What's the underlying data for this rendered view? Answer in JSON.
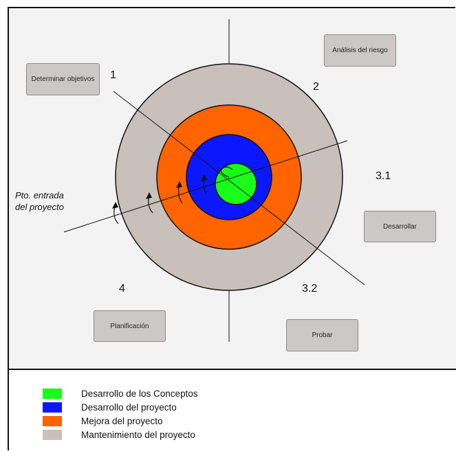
{
  "boxes": {
    "determinar": "Determinar objetivos",
    "analisis": "Análisis del riesgo",
    "desarrollar": "Desarrollar",
    "probar": "Probar",
    "planificacion": "Planificación"
  },
  "quadrant_numbers": {
    "q1": "1",
    "q2": "2",
    "q31": "3.1",
    "q32": "3.2",
    "q4": "4"
  },
  "entry_point": {
    "line1": "Pto. entrada",
    "line2": "del proyecto"
  },
  "legend": [
    {
      "label": "Desarrollo de los Conceptos",
      "color": "#19ff19"
    },
    {
      "label": "Desarrollo del proyecto",
      "color": "#0b18ff"
    },
    {
      "label": "Mejora del proyecto",
      "color": "#ff6400"
    },
    {
      "label": "Mantenimiento del proyecto",
      "color": "#c9bfbb"
    }
  ]
}
